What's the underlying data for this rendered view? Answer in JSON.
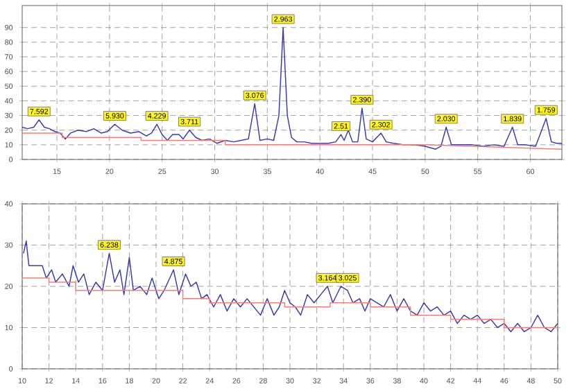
{
  "chart_data": [
    {
      "type": "line",
      "xlim": [
        11.7,
        63
      ],
      "ylim": [
        0,
        105
      ],
      "xticks": [
        15,
        20,
        25,
        30,
        35,
        40,
        45,
        50,
        55,
        60
      ],
      "yticks": [
        0,
        10,
        20,
        30,
        40,
        50,
        60,
        70,
        80,
        90
      ],
      "grid": true,
      "marker": "none",
      "line_style": "solid",
      "series": [
        {
          "color": "#3a3aa8",
          "x": [
            11.7,
            12.2,
            12.8,
            13.3,
            13.8,
            14.3,
            14.8,
            15.3,
            15.8,
            16.3,
            17,
            17.8,
            18.5,
            19.2,
            19.8,
            20.5,
            21.2,
            22,
            22.8,
            23.5,
            24,
            24.5,
            25,
            25.5,
            26,
            26.6,
            27,
            27.6,
            28.2,
            28.8,
            29.5,
            30.2,
            31,
            31.8,
            32.5,
            33.2,
            33.8,
            34.3,
            35,
            35.6,
            36.1,
            36.5,
            36.9,
            37.3,
            37.8,
            38.5,
            39.2,
            40,
            40.8,
            41.5,
            42,
            42.3,
            42.7,
            43.1,
            43.6,
            44,
            44.4,
            45,
            45.8,
            46.3,
            47,
            48,
            49,
            50,
            51,
            51.5,
            52,
            52.5,
            53.5,
            54.5,
            55.5,
            56.5,
            57.5,
            58.3,
            58.8,
            59.5,
            60.5,
            61.5,
            62,
            62.5,
            63
          ],
          "values": [
            22,
            21,
            22,
            27,
            22,
            21,
            19,
            18,
            14,
            18,
            20,
            19,
            21,
            18,
            19,
            24,
            20,
            18,
            19,
            16,
            18,
            24,
            17,
            13,
            17,
            17,
            14,
            20,
            15,
            13,
            14,
            11,
            13,
            12,
            13,
            14,
            38,
            13,
            14,
            13,
            30,
            90,
            30,
            15,
            12,
            12,
            11,
            11,
            11,
            12,
            17,
            13,
            20,
            12,
            12,
            35,
            14,
            12,
            18,
            12,
            11,
            10,
            10,
            9,
            7,
            9,
            22,
            10,
            10,
            10,
            9,
            10,
            9,
            22,
            10,
            10,
            9,
            28,
            12,
            11,
            11
          ]
        },
        {
          "color": "#f08080",
          "x": [
            11.7,
            15.5,
            15.5,
            23,
            23,
            31,
            31,
            50,
            63
          ],
          "values": [
            18,
            18,
            15,
            15,
            13,
            13,
            10,
            10,
            7
          ]
        }
      ],
      "annotations": [
        {
          "text": "7.592",
          "x": 13.3,
          "y": 27
        },
        {
          "text": "5.930",
          "x": 20.5,
          "y": 24
        },
        {
          "text": "4.229",
          "x": 24.5,
          "y": 24
        },
        {
          "text": "3.711",
          "x": 27.6,
          "y": 20
        },
        {
          "text": "3.076",
          "x": 33.8,
          "y": 38
        },
        {
          "text": "2.963",
          "x": 36.5,
          "y": 90
        },
        {
          "text": "2.51",
          "x": 42,
          "y": 17
        },
        {
          "text": "2.390",
          "x": 44,
          "y": 35
        },
        {
          "text": "2.302",
          "x": 45.8,
          "y": 18
        },
        {
          "text": "2.030",
          "x": 52,
          "y": 22
        },
        {
          "text": "1.839",
          "x": 58.3,
          "y": 22
        },
        {
          "text": "1.759",
          "x": 61.5,
          "y": 28
        }
      ]
    },
    {
      "type": "line",
      "xlim": [
        10,
        50
      ],
      "ylim": [
        0,
        40
      ],
      "xticks": [
        10,
        12,
        14,
        16,
        18,
        20,
        22,
        24,
        26,
        28,
        30,
        32,
        34,
        36,
        38,
        40,
        42,
        44,
        46,
        48,
        50
      ],
      "yticks": [
        0,
        10,
        20,
        30,
        40
      ],
      "grid": true,
      "marker": "none",
      "line_style": "solid",
      "series": [
        {
          "color": "#3a3aa8",
          "x": [
            10.1,
            10.3,
            10.5,
            11.5,
            11.8,
            12.2,
            12.5,
            13,
            13.5,
            13.8,
            14.2,
            14.6,
            15,
            15.5,
            16,
            16.5,
            16.9,
            17.3,
            17.6,
            18,
            18.3,
            18.8,
            19.3,
            19.7,
            20.2,
            20.6,
            21.3,
            21.7,
            22.2,
            22.6,
            23,
            23.4,
            23.8,
            24.3,
            24.8,
            25.3,
            25.8,
            26.3,
            26.8,
            27.3,
            27.8,
            28.3,
            28.8,
            29.2,
            29.6,
            30,
            30.4,
            30.8,
            31.3,
            31.8,
            32.3,
            32.8,
            33.2,
            33.8,
            34.3,
            34.7,
            35.2,
            35.6,
            36,
            36.5,
            37,
            37.5,
            38,
            38.5,
            39,
            39.5,
            40,
            40.5,
            41,
            41.5,
            42,
            42.5,
            43,
            43.5,
            44,
            44.5,
            45,
            45.5,
            46,
            46.5,
            47,
            47.5,
            48,
            48.5,
            49,
            49.5,
            50
          ],
          "values": [
            28,
            31,
            25,
            25,
            22,
            24,
            21,
            23,
            20,
            25,
            21,
            23,
            18,
            21,
            19,
            28,
            21,
            24,
            18,
            27,
            19,
            20,
            18,
            22,
            17,
            19,
            24,
            18,
            23,
            20,
            21,
            17,
            18,
            15,
            18,
            14,
            17,
            15,
            17,
            15,
            13,
            17,
            13,
            15,
            19,
            16,
            15,
            13,
            18,
            16,
            18,
            20,
            16,
            20,
            19,
            16,
            17,
            14,
            17,
            16,
            15,
            18,
            14,
            17,
            14,
            13,
            16,
            14,
            15,
            13,
            14,
            11,
            13,
            12,
            13,
            11,
            12,
            10,
            11,
            9,
            11,
            9,
            10,
            13,
            10,
            9,
            11
          ]
        },
        {
          "color": "#f08080",
          "x": [
            10,
            12,
            12,
            14,
            14,
            22,
            22,
            24,
            24,
            29.6,
            29.6,
            33,
            33,
            36,
            36,
            39,
            39,
            42,
            42,
            46,
            46,
            50
          ],
          "values": [
            22,
            22,
            21,
            21,
            19,
            19,
            17,
            17,
            16,
            16,
            15,
            15,
            16,
            16,
            15,
            15,
            13,
            13,
            12,
            12,
            10,
            10
          ]
        }
      ],
      "annotations": [
        {
          "text": "6.238",
          "x": 16.5,
          "y": 28
        },
        {
          "text": "4.875",
          "x": 21.3,
          "y": 24
        },
        {
          "text": "3.164",
          "x": 32.8,
          "y": 20
        },
        {
          "text": "3.025",
          "x": 34.3,
          "y": 20
        }
      ]
    }
  ]
}
